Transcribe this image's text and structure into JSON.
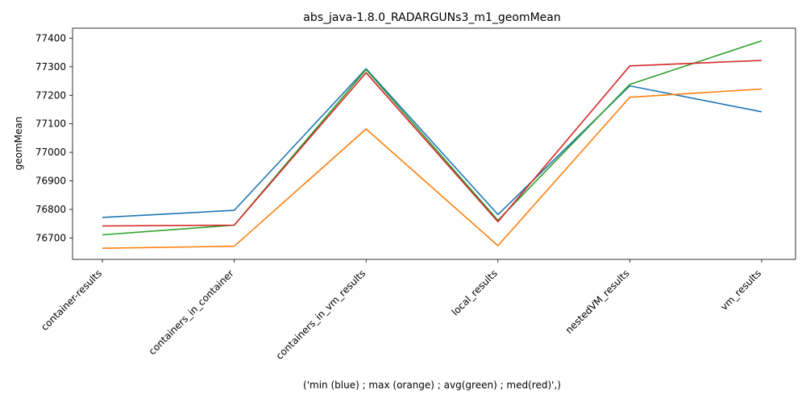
{
  "chart_data": {
    "type": "line",
    "title": "abs_java-1.8.0_RADARGUNs3_m1_geomMean",
    "xlabel": "('min (blue) ; max (orange) ; avg(green) ; med(red)',)",
    "ylabel": "geomMean",
    "categories": [
      "container-results",
      "containers_in_container",
      "containers_in_vm_results",
      "local_results",
      "nestedVM_results",
      "vm_results"
    ],
    "ylim": [
      76625,
      77435
    ],
    "yticks": [
      76700,
      76800,
      76900,
      77000,
      77100,
      77200,
      77300,
      77400
    ],
    "grid": false,
    "series": [
      {
        "color": "#1f77b4",
        "values": [
          76772,
          76797,
          77293,
          76782,
          77233,
          77142
        ]
      },
      {
        "color": "#ff7f0e",
        "values": [
          76664,
          76671,
          77082,
          76673,
          77193,
          77222
        ]
      },
      {
        "color": "#2ca02c",
        "values": [
          76711,
          76745,
          77290,
          76762,
          77238,
          77391
        ]
      },
      {
        "color": "#d62728",
        "values": [
          76742,
          76745,
          77279,
          76757,
          77303,
          77322
        ]
      }
    ]
  }
}
